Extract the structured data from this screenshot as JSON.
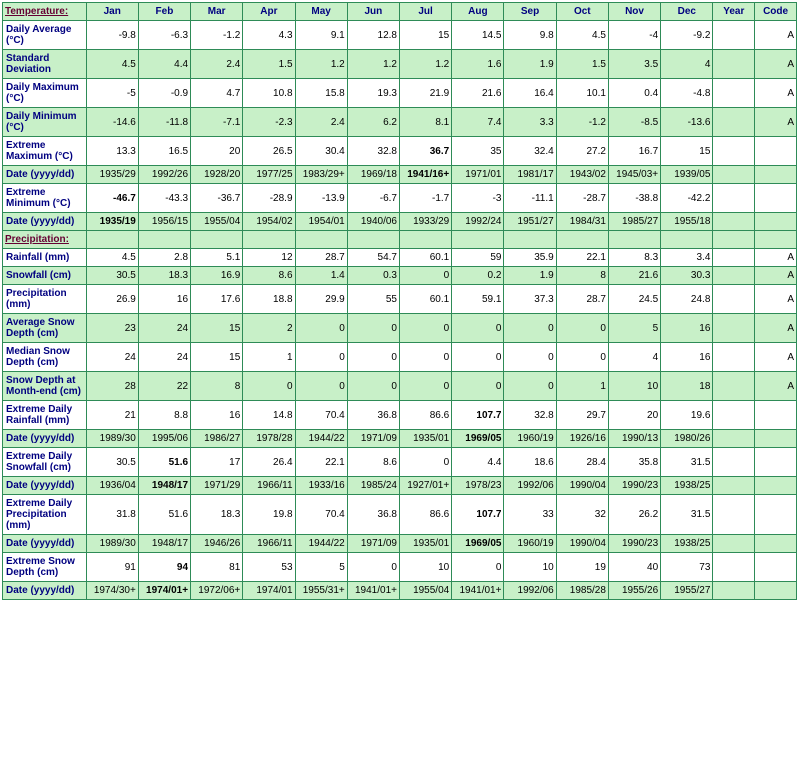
{
  "headers": [
    "Temperature:",
    "Jan",
    "Feb",
    "Mar",
    "Apr",
    "May",
    "Jun",
    "Jul",
    "Aug",
    "Sep",
    "Oct",
    "Nov",
    "Dec",
    "Year",
    "Code"
  ],
  "header_colors": {
    "first": "#660033",
    "rest": "#000080"
  },
  "bg_even": "#ffffff",
  "bg_odd": "#c8f0c8",
  "border_color": "#2e8b57",
  "rows": [
    {
      "label": "Daily Average (°C)",
      "cls": "row-even",
      "vals": [
        "-9.8",
        "-6.3",
        "-1.2",
        "4.3",
        "9.1",
        "12.8",
        "15",
        "14.5",
        "9.8",
        "4.5",
        "-4",
        "-9.2",
        "",
        "A"
      ]
    },
    {
      "label": "Standard Deviation",
      "cls": "row-odd",
      "vals": [
        "4.5",
        "4.4",
        "2.4",
        "1.5",
        "1.2",
        "1.2",
        "1.2",
        "1.6",
        "1.9",
        "1.5",
        "3.5",
        "4",
        "",
        "A"
      ]
    },
    {
      "label": "Daily Maximum (°C)",
      "cls": "row-even",
      "vals": [
        "-5",
        "-0.9",
        "4.7",
        "10.8",
        "15.8",
        "19.3",
        "21.9",
        "21.6",
        "16.4",
        "10.1",
        "0.4",
        "-4.8",
        "",
        "A"
      ]
    },
    {
      "label": "Daily Minimum (°C)",
      "cls": "row-odd",
      "vals": [
        "-14.6",
        "-11.8",
        "-7.1",
        "-2.3",
        "2.4",
        "6.2",
        "8.1",
        "7.4",
        "3.3",
        "-1.2",
        "-8.5",
        "-13.6",
        "",
        "A"
      ]
    },
    {
      "label": "Extreme Maximum (°C)",
      "cls": "row-even",
      "vals": [
        "13.3",
        "16.5",
        "20",
        "26.5",
        "30.4",
        "32.8",
        "36.7",
        "35",
        "32.4",
        "27.2",
        "16.7",
        "15",
        "",
        ""
      ],
      "bold": [
        6
      ]
    },
    {
      "label": "Date (yyyy/dd)",
      "cls": "row-odd",
      "vals": [
        "1935/29",
        "1992/26",
        "1928/20",
        "1977/25",
        "1983/29+",
        "1969/18",
        "1941/16+",
        "1971/01",
        "1981/17",
        "1943/02",
        "1945/03+",
        "1939/05",
        "",
        ""
      ],
      "bold": [
        6
      ]
    },
    {
      "label": "Extreme Minimum (°C)",
      "cls": "row-even",
      "vals": [
        "-46.7",
        "-43.3",
        "-36.7",
        "-28.9",
        "-13.9",
        "-6.7",
        "-1.7",
        "-3",
        "-11.1",
        "-28.7",
        "-38.8",
        "-42.2",
        "",
        ""
      ],
      "bold": [
        0
      ]
    },
    {
      "label": "Date (yyyy/dd)",
      "cls": "row-odd",
      "vals": [
        "1935/19",
        "1956/15",
        "1955/04",
        "1954/02",
        "1954/01",
        "1940/06",
        "1933/29",
        "1992/24",
        "1951/27",
        "1984/31",
        "1985/27",
        "1955/18",
        "",
        ""
      ],
      "bold": [
        0
      ]
    },
    {
      "section": "Precipitation:",
      "cls": "row-even"
    },
    {
      "label": "Rainfall (mm)",
      "cls": "row-even",
      "vals": [
        "4.5",
        "2.8",
        "5.1",
        "12",
        "28.7",
        "54.7",
        "60.1",
        "59",
        "35.9",
        "22.1",
        "8.3",
        "3.4",
        "",
        "A"
      ]
    },
    {
      "label": "Snowfall (cm)",
      "cls": "row-odd",
      "vals": [
        "30.5",
        "18.3",
        "16.9",
        "8.6",
        "1.4",
        "0.3",
        "0",
        "0.2",
        "1.9",
        "8",
        "21.6",
        "30.3",
        "",
        "A"
      ]
    },
    {
      "label": "Precipitation (mm)",
      "cls": "row-even",
      "vals": [
        "26.9",
        "16",
        "17.6",
        "18.8",
        "29.9",
        "55",
        "60.1",
        "59.1",
        "37.3",
        "28.7",
        "24.5",
        "24.8",
        "",
        "A"
      ]
    },
    {
      "label": "Average Snow Depth (cm)",
      "cls": "row-odd",
      "vals": [
        "23",
        "24",
        "15",
        "2",
        "0",
        "0",
        "0",
        "0",
        "0",
        "0",
        "5",
        "16",
        "",
        "A"
      ]
    },
    {
      "label": "Median Snow Depth (cm)",
      "cls": "row-even",
      "vals": [
        "24",
        "24",
        "15",
        "1",
        "0",
        "0",
        "0",
        "0",
        "0",
        "0",
        "4",
        "16",
        "",
        "A"
      ]
    },
    {
      "label": "Snow Depth at Month-end (cm)",
      "cls": "row-odd",
      "vals": [
        "28",
        "22",
        "8",
        "0",
        "0",
        "0",
        "0",
        "0",
        "0",
        "1",
        "10",
        "18",
        "",
        "A"
      ]
    },
    {
      "label": "Extreme Daily Rainfall (mm)",
      "cls": "row-even",
      "vals": [
        "21",
        "8.8",
        "16",
        "14.8",
        "70.4",
        "36.8",
        "86.6",
        "107.7",
        "32.8",
        "29.7",
        "20",
        "19.6",
        "",
        ""
      ],
      "bold": [
        7
      ]
    },
    {
      "label": "Date (yyyy/dd)",
      "cls": "row-odd",
      "vals": [
        "1989/30",
        "1995/06",
        "1986/27",
        "1978/28",
        "1944/22",
        "1971/09",
        "1935/01",
        "1969/05",
        "1960/19",
        "1926/16",
        "1990/13",
        "1980/26",
        "",
        ""
      ],
      "bold": [
        7
      ]
    },
    {
      "label": "Extreme Daily Snowfall (cm)",
      "cls": "row-even",
      "vals": [
        "30.5",
        "51.6",
        "17",
        "26.4",
        "22.1",
        "8.6",
        "0",
        "4.4",
        "18.6",
        "28.4",
        "35.8",
        "31.5",
        "",
        ""
      ],
      "bold": [
        1
      ]
    },
    {
      "label": "Date (yyyy/dd)",
      "cls": "row-odd",
      "vals": [
        "1936/04",
        "1948/17",
        "1971/29",
        "1966/11",
        "1933/16",
        "1985/24",
        "1927/01+",
        "1978/23",
        "1992/06",
        "1990/04",
        "1990/23",
        "1938/25",
        "",
        ""
      ],
      "bold": [
        1
      ]
    },
    {
      "label": "Extreme Daily Precipitation (mm)",
      "cls": "row-even",
      "vals": [
        "31.8",
        "51.6",
        "18.3",
        "19.8",
        "70.4",
        "36.8",
        "86.6",
        "107.7",
        "33",
        "32",
        "26.2",
        "31.5",
        "",
        ""
      ],
      "bold": [
        7
      ]
    },
    {
      "label": "Date (yyyy/dd)",
      "cls": "row-odd",
      "vals": [
        "1989/30",
        "1948/17",
        "1946/26",
        "1966/11",
        "1944/22",
        "1971/09",
        "1935/01",
        "1969/05",
        "1960/19",
        "1990/04",
        "1990/23",
        "1938/25",
        "",
        ""
      ],
      "bold": [
        7
      ]
    },
    {
      "label": "Extreme Snow Depth (cm)",
      "cls": "row-even",
      "vals": [
        "91",
        "94",
        "81",
        "53",
        "5",
        "0",
        "10",
        "0",
        "10",
        "19",
        "40",
        "73",
        "",
        ""
      ],
      "bold": [
        1
      ]
    },
    {
      "label": "Date (yyyy/dd)",
      "cls": "row-odd",
      "vals": [
        "1974/30+",
        "1974/01+",
        "1972/06+",
        "1974/01",
        "1955/31+",
        "1941/01+",
        "1955/04",
        "1941/01+",
        "1992/06",
        "1985/28",
        "1955/26",
        "1955/27",
        "",
        ""
      ],
      "bold": [
        1
      ]
    }
  ]
}
